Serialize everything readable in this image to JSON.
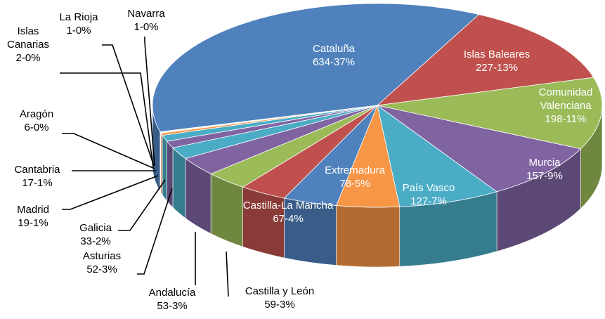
{
  "chart_data": {
    "type": "pie",
    "categories": [
      "Cataluña",
      "Islas Baleares",
      "Comunidad Valenciana",
      "Murcia",
      "País Vasco",
      "Extremadura",
      "Castilla-La Mancha",
      "Castilla y León",
      "Andalucía",
      "Asturias",
      "Galicia",
      "Madrid",
      "Cantabria",
      "Aragón",
      "Islas Canarias",
      "La Rioja",
      "Navarra"
    ],
    "values": [
      634,
      227,
      198,
      157,
      127,
      78,
      67,
      59,
      53,
      52,
      33,
      19,
      17,
      6,
      2,
      1,
      1
    ],
    "value_labels": [
      "634-37%",
      "227-13%",
      "198-11%",
      "157-9%",
      "127-7%",
      "78-5%",
      "67-4%",
      "59-3%",
      "53-3%",
      "52-3%",
      "33-2%",
      "19-1%",
      "17-1%",
      "6-0%",
      "2-0%",
      "1-0%",
      "1-0%"
    ],
    "colors": [
      "#4f81bd",
      "#c0504d",
      "#9bbb59",
      "#8064a2",
      "#4bacc6",
      "#f79646",
      "#4f81bd",
      "#c0504d",
      "#9bbb59",
      "#8064a2",
      "#4bacc6",
      "#8064a2",
      "#4bacc6",
      "#f79646",
      "#f79646",
      "#a5b9db",
      "#d6a3a2"
    ]
  }
}
